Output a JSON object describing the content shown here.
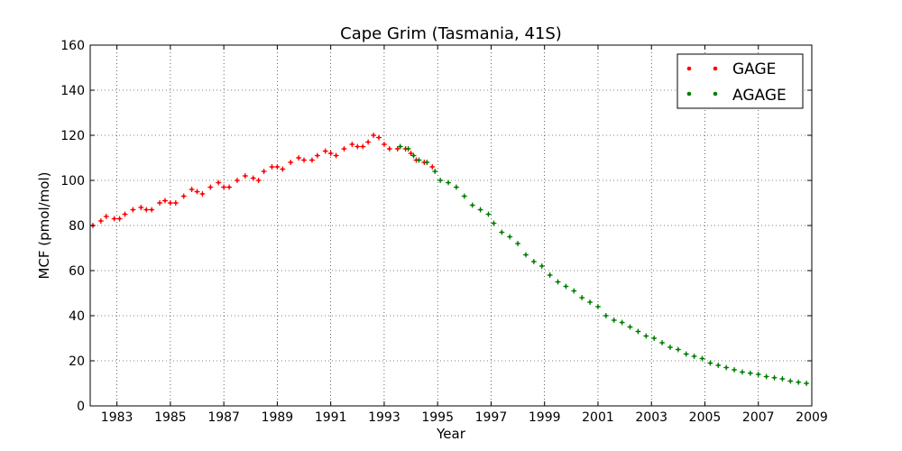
{
  "chart_data": {
    "type": "scatter",
    "title": "Cape Grim (Tasmania, 41S)",
    "xlabel": "Year",
    "ylabel": "MCF (pmol/mol)",
    "xlim": [
      1982,
      2009
    ],
    "ylim": [
      0,
      160
    ],
    "x_ticks": [
      1983,
      1985,
      1987,
      1989,
      1991,
      1993,
      1995,
      1997,
      1999,
      2001,
      2003,
      2005,
      2007,
      2009
    ],
    "y_ticks": [
      0,
      20,
      40,
      60,
      80,
      100,
      120,
      140,
      160
    ],
    "grid": true,
    "legend_position": "top-right",
    "colors": {
      "GAGE": "#ff0000",
      "AGAGE": "#007f00"
    },
    "series": [
      {
        "name": "GAGE",
        "color": "#ff0000",
        "points": [
          [
            1982.1,
            80
          ],
          [
            1982.4,
            82
          ],
          [
            1982.6,
            84
          ],
          [
            1982.9,
            83
          ],
          [
            1983.1,
            83
          ],
          [
            1983.3,
            85
          ],
          [
            1983.6,
            87
          ],
          [
            1983.9,
            88
          ],
          [
            1984.1,
            87
          ],
          [
            1984.3,
            87
          ],
          [
            1984.6,
            90
          ],
          [
            1984.8,
            91
          ],
          [
            1985.0,
            90
          ],
          [
            1985.2,
            90
          ],
          [
            1985.5,
            93
          ],
          [
            1985.8,
            96
          ],
          [
            1986.0,
            95
          ],
          [
            1986.2,
            94
          ],
          [
            1986.5,
            97
          ],
          [
            1986.8,
            99
          ],
          [
            1987.0,
            97
          ],
          [
            1987.2,
            97
          ],
          [
            1987.5,
            100
          ],
          [
            1987.8,
            102
          ],
          [
            1988.1,
            101
          ],
          [
            1988.3,
            100
          ],
          [
            1988.5,
            104
          ],
          [
            1988.8,
            106
          ],
          [
            1989.0,
            106
          ],
          [
            1989.2,
            105
          ],
          [
            1989.5,
            108
          ],
          [
            1989.8,
            110
          ],
          [
            1990.0,
            109
          ],
          [
            1990.3,
            109
          ],
          [
            1990.5,
            111
          ],
          [
            1990.8,
            113
          ],
          [
            1991.0,
            112
          ],
          [
            1991.2,
            111
          ],
          [
            1991.5,
            114
          ],
          [
            1991.8,
            116
          ],
          [
            1992.0,
            115
          ],
          [
            1992.2,
            115
          ],
          [
            1992.4,
            117
          ],
          [
            1992.6,
            120
          ],
          [
            1992.8,
            119
          ],
          [
            1993.0,
            116
          ],
          [
            1993.2,
            114
          ],
          [
            1993.5,
            114
          ],
          [
            1993.8,
            114
          ],
          [
            1994.0,
            112
          ],
          [
            1994.2,
            109
          ],
          [
            1994.5,
            108
          ],
          [
            1994.8,
            106
          ]
        ]
      },
      {
        "name": "AGAGE",
        "color": "#007f00",
        "points": [
          [
            1993.6,
            115
          ],
          [
            1993.9,
            114
          ],
          [
            1994.1,
            111
          ],
          [
            1994.3,
            109
          ],
          [
            1994.6,
            108
          ],
          [
            1994.9,
            104
          ],
          [
            1995.1,
            100
          ],
          [
            1995.4,
            99
          ],
          [
            1995.7,
            97
          ],
          [
            1996.0,
            93
          ],
          [
            1996.3,
            89
          ],
          [
            1996.6,
            87
          ],
          [
            1996.9,
            85
          ],
          [
            1997.1,
            81
          ],
          [
            1997.4,
            77
          ],
          [
            1997.7,
            75
          ],
          [
            1998.0,
            72
          ],
          [
            1998.3,
            67
          ],
          [
            1998.6,
            64
          ],
          [
            1998.9,
            62
          ],
          [
            1999.2,
            58
          ],
          [
            1999.5,
            55
          ],
          [
            1999.8,
            53
          ],
          [
            2000.1,
            51
          ],
          [
            2000.4,
            48
          ],
          [
            2000.7,
            46
          ],
          [
            2001.0,
            44
          ],
          [
            2001.3,
            40
          ],
          [
            2001.6,
            38
          ],
          [
            2001.9,
            37
          ],
          [
            2002.2,
            35
          ],
          [
            2002.5,
            33
          ],
          [
            2002.8,
            31
          ],
          [
            2003.1,
            30
          ],
          [
            2003.4,
            28
          ],
          [
            2003.7,
            26
          ],
          [
            2004.0,
            25
          ],
          [
            2004.3,
            23
          ],
          [
            2004.6,
            22
          ],
          [
            2004.9,
            21
          ],
          [
            2005.2,
            19
          ],
          [
            2005.5,
            18
          ],
          [
            2005.8,
            17
          ],
          [
            2006.1,
            16
          ],
          [
            2006.4,
            15
          ],
          [
            2006.7,
            14.5
          ],
          [
            2007.0,
            14
          ],
          [
            2007.3,
            13
          ],
          [
            2007.6,
            12.5
          ],
          [
            2007.9,
            12
          ],
          [
            2008.2,
            11
          ],
          [
            2008.5,
            10.5
          ],
          [
            2008.8,
            10
          ]
        ]
      }
    ]
  }
}
